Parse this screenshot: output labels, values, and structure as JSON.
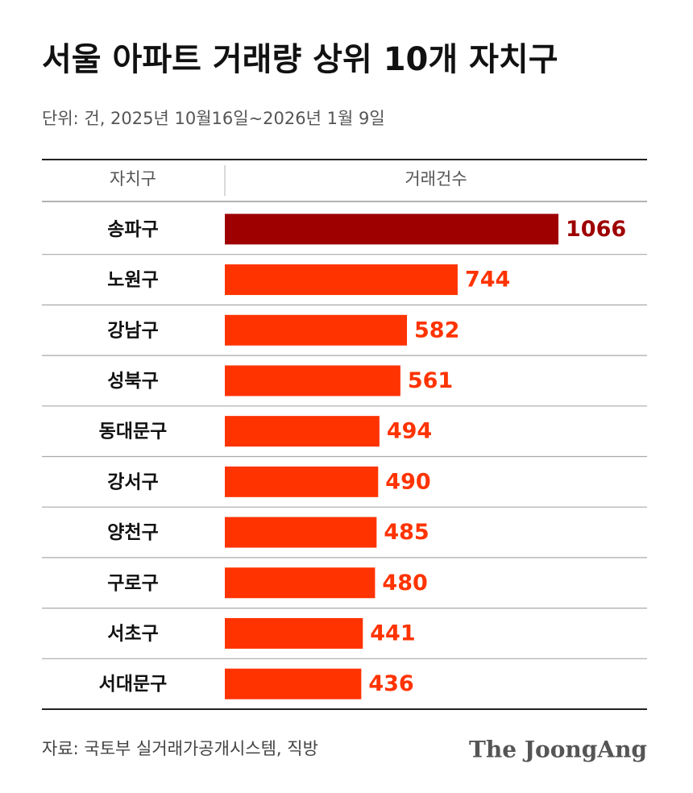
{
  "chart_data": {
    "type": "bar",
    "title": "서울 아파트 거래량 상위 10개 자치구",
    "subtitle": "단위: 건, 2025년 10월16일~2026년 1월 9일",
    "category_header": "자치구",
    "value_header": "거래건수",
    "categories": [
      "송파구",
      "노원구",
      "강남구",
      "성북구",
      "동대문구",
      "강서구",
      "양천구",
      "구로구",
      "서초구",
      "서대문구"
    ],
    "values": [
      1066,
      744,
      582,
      561,
      494,
      490,
      485,
      480,
      441,
      436
    ],
    "colors": [
      "#9e0000",
      "#ff3300",
      "#ff3300",
      "#ff3300",
      "#ff3300",
      "#ff3300",
      "#ff3300",
      "#ff3300",
      "#ff3300",
      "#ff3300"
    ],
    "source": "자료: 국토부 실거래가공개시스템, 직방",
    "brand": "The JoongAng"
  }
}
